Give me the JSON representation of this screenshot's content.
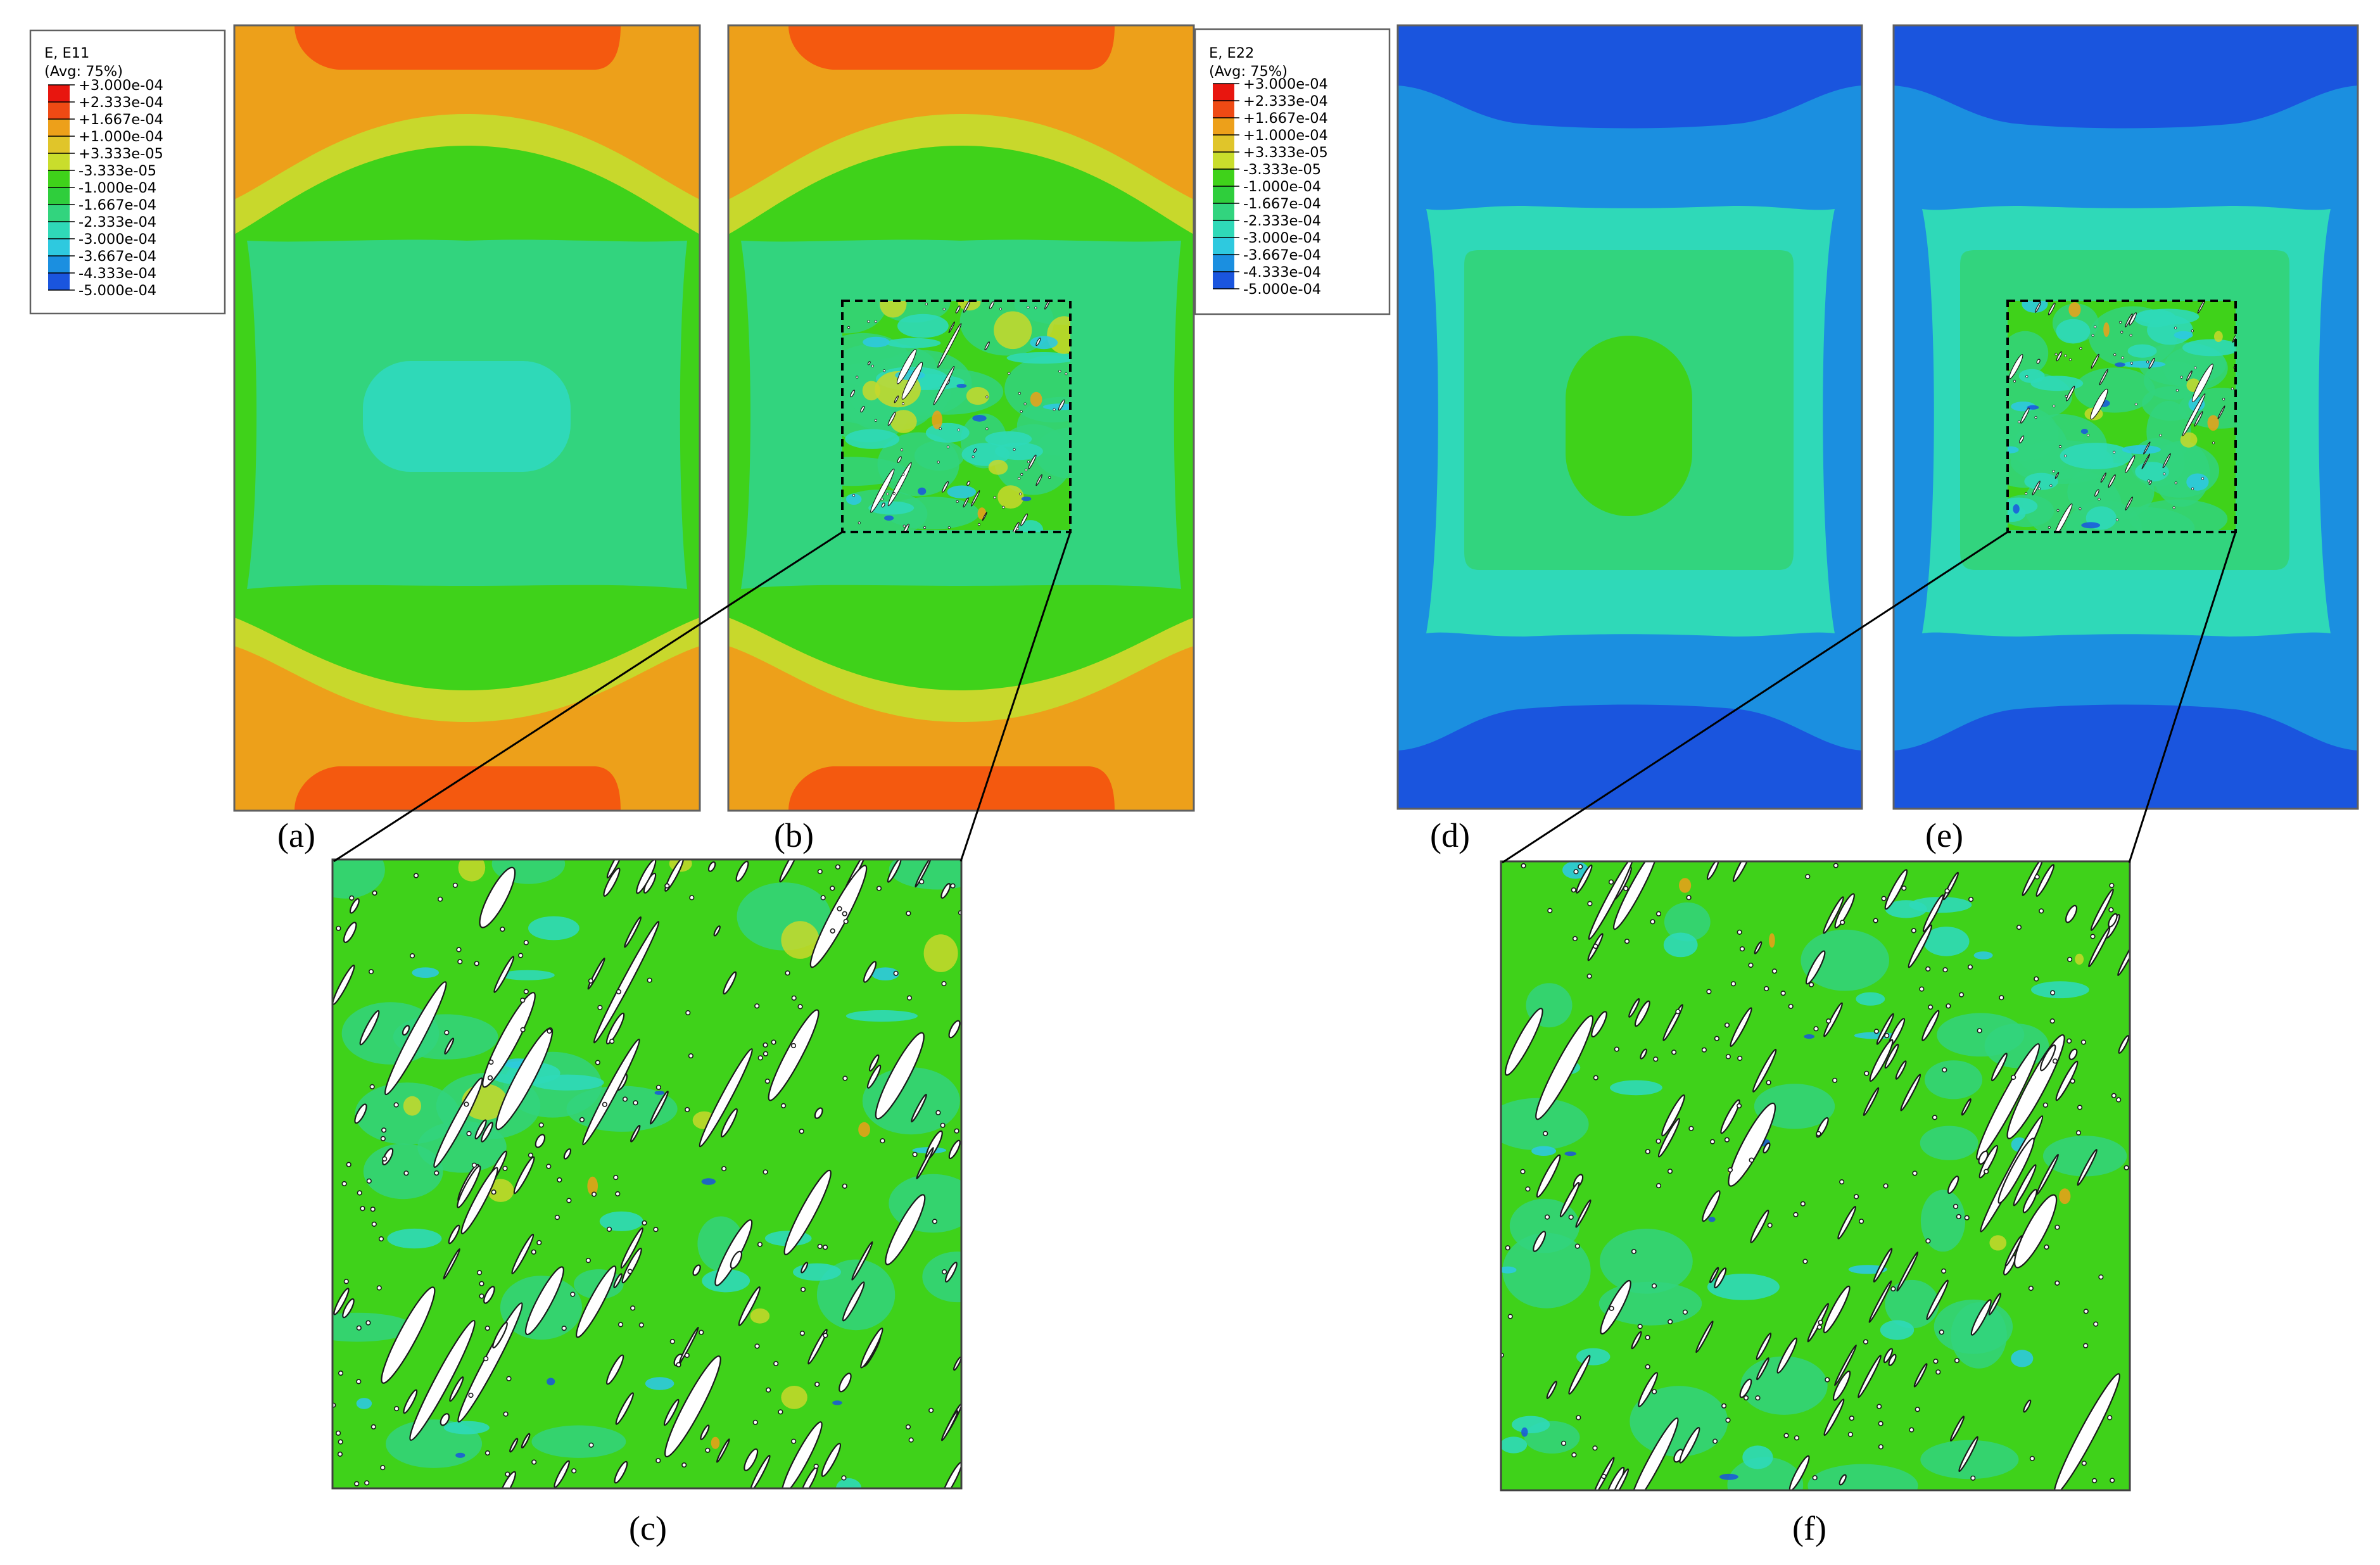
{
  "figure": {
    "panel_labels": [
      "(a)",
      "(b)",
      "(c)",
      "(d)",
      "(e)",
      "(f)"
    ]
  },
  "legends": [
    {
      "title": "E, E11",
      "subtitle": "(Avg: 75%)",
      "values": [
        "+3.000e-04",
        "+2.333e-04",
        "+1.667e-04",
        "+1.000e-04",
        "+3.333e-05",
        "-3.333e-05",
        "-1.000e-04",
        "-1.667e-04",
        "-2.333e-04",
        "-3.000e-04",
        "-3.667e-04",
        "-4.333e-04",
        "-5.000e-04"
      ]
    },
    {
      "title": "E, E22",
      "subtitle": "(Avg: 75%)",
      "values": [
        "+3.000e-04",
        "+2.333e-04",
        "+1.667e-04",
        "+1.000e-04",
        "+3.333e-05",
        "-3.333e-05",
        "-1.000e-04",
        "-1.667e-04",
        "-2.333e-04",
        "-3.000e-04",
        "-3.667e-04",
        "-4.333e-04",
        "-5.000e-04"
      ]
    }
  ],
  "colormap": [
    "#e8160f",
    "#ef4a14",
    "#eda01a",
    "#e0c52a",
    "#c9dd2c",
    "#3fd21a",
    "#2fce3c",
    "#32d47e",
    "#2fd9b8",
    "#2ec9df",
    "#1b8fe0",
    "#1a55de",
    "#1525cc"
  ],
  "colors": {
    "red": "#f4590f",
    "orange": "#eda01a",
    "yellow": "#c8d82c",
    "green": "#3fd21a",
    "green_light": "#32d47e",
    "cyan_green": "#2fd9b8",
    "cyan": "#2ec9df",
    "blue_light": "#1b8fe0",
    "blue": "#1a55de",
    "dark_blue": "#1525cc",
    "crack": "#ffffff"
  }
}
